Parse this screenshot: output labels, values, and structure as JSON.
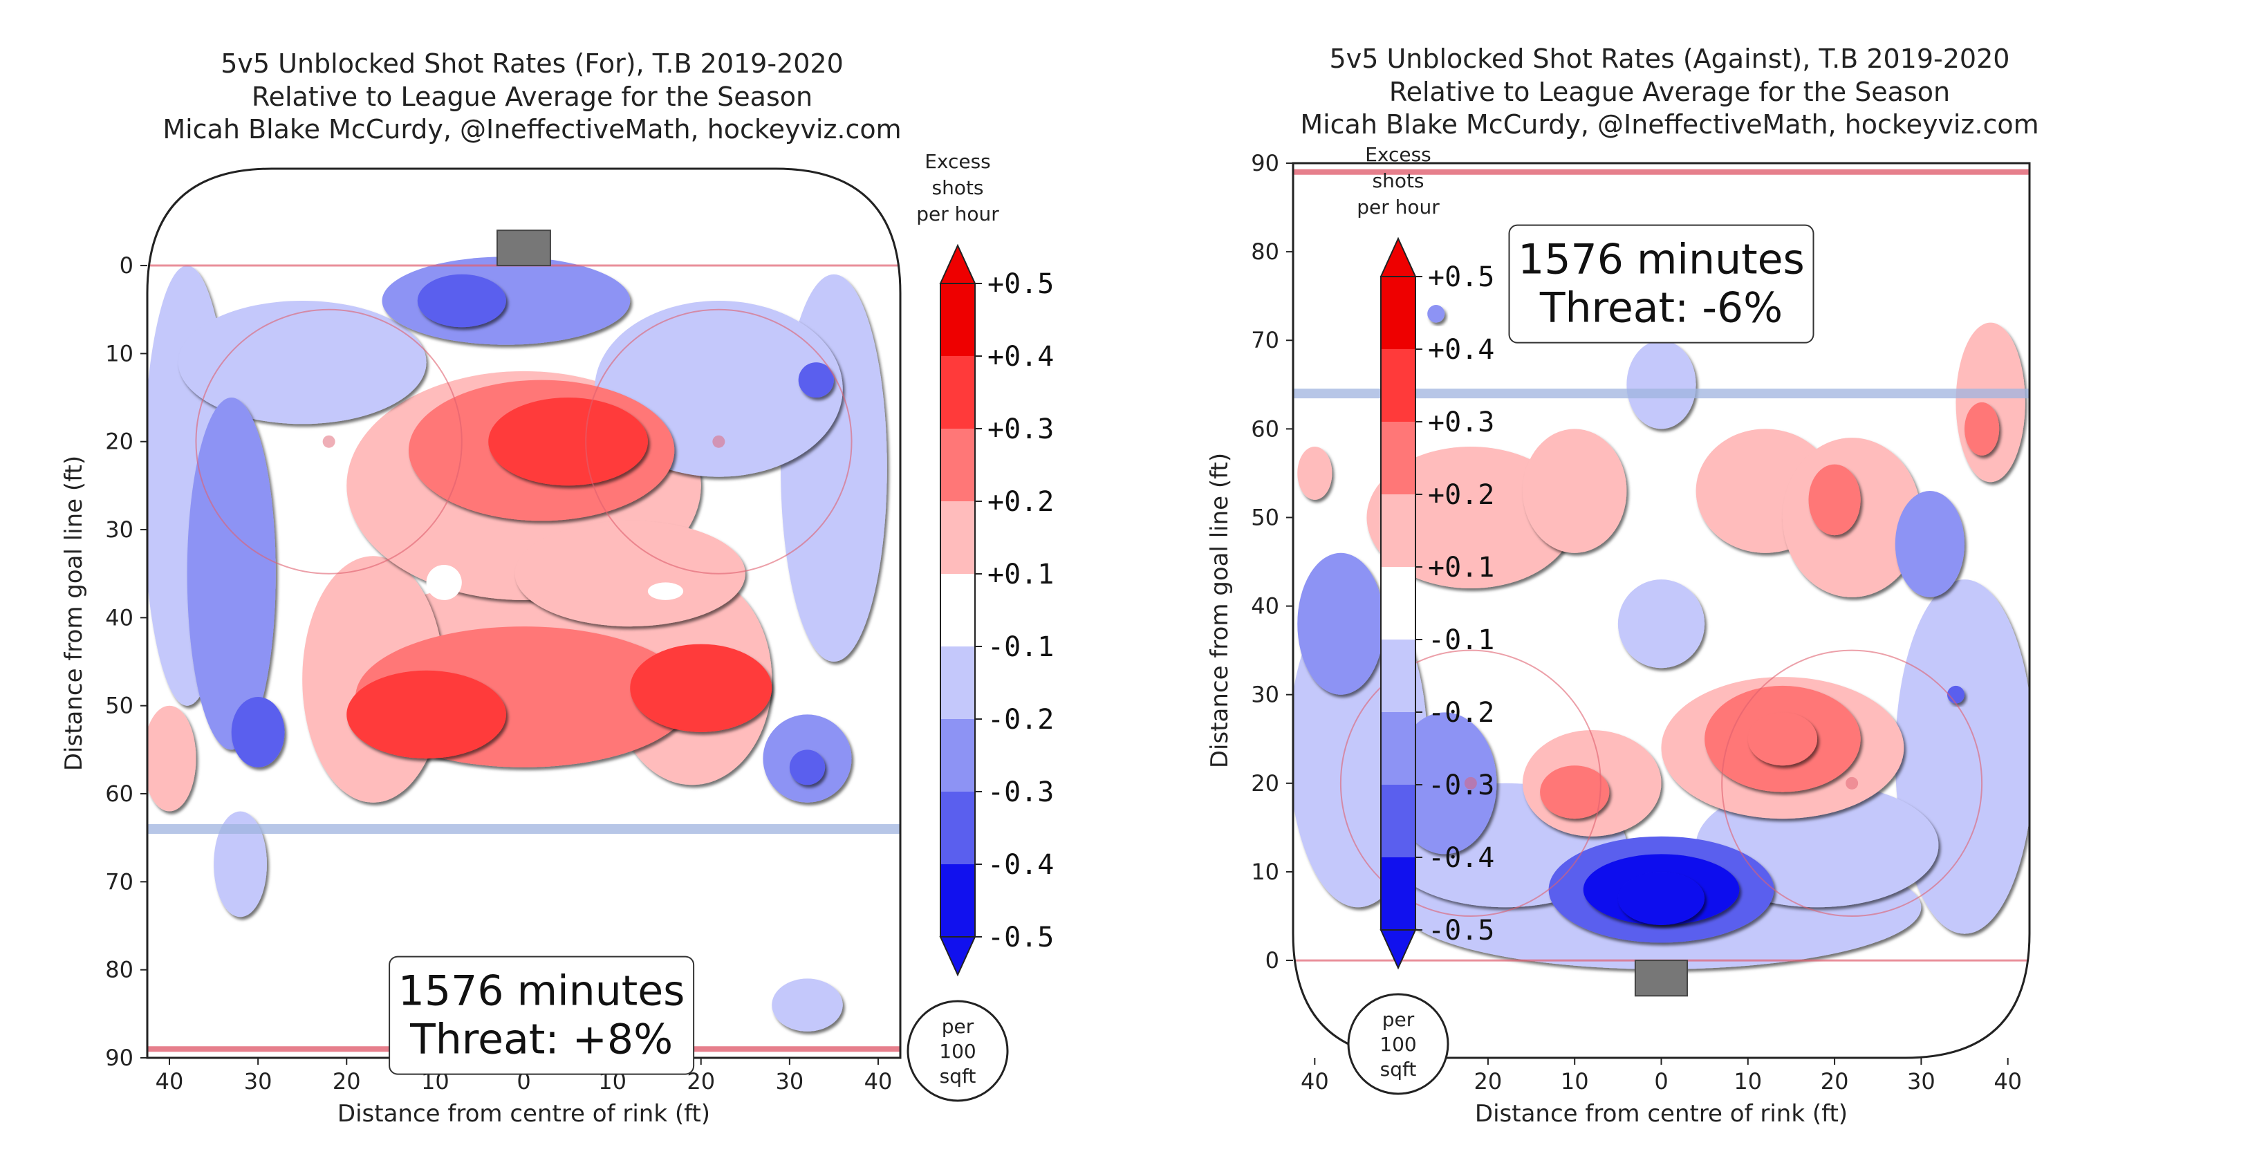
{
  "colors": {
    "red_max": "#ee0000",
    "red_1": "#ff3a3a",
    "red_2": "#ff7777",
    "red_3": "#ffbcbc",
    "neutral": "#ffffff",
    "blue_1": "#c4c8fb",
    "blue_2": "#8d93f4",
    "blue_3": "#5a5fee",
    "blue_max": "#1111ee",
    "rink_line_red": "#e06070",
    "rink_line_blue": "#9fb4e0",
    "net": "#777777"
  },
  "colorbar": {
    "header": [
      "Excess",
      "shots",
      "per hour"
    ],
    "tick_labels": [
      "+0.5",
      "+0.4",
      "+0.3",
      "+0.2",
      "+0.1",
      "-0.1",
      "-0.2",
      "-0.3",
      "-0.4",
      "-0.5"
    ],
    "unit": [
      "per",
      "100",
      "sqft"
    ]
  },
  "chart_data": [
    {
      "type": "heatmap",
      "title": [
        "5v5 Unblocked Shot Rates (For), T.B 2019-2020",
        "Relative to League Average for the Season",
        "Micah Blake McCurdy, @IneffectiveMath, hockeyviz.com"
      ],
      "xlabel": "Distance from centre of rink (ft)",
      "ylabel": "Distance from goal line (ft)",
      "x_ticks": [
        "40",
        "30",
        "20",
        "10",
        "0",
        "10",
        "20",
        "30",
        "40"
      ],
      "y_ticks": [
        "0",
        "10",
        "20",
        "30",
        "40",
        "50",
        "60",
        "70",
        "80",
        "90"
      ],
      "xlim": [
        -42.5,
        42.5
      ],
      "ylim": [
        -11,
        90
      ],
      "y_inverted": true,
      "goal_end": "top",
      "annotation": [
        "1576 minutes",
        "Threat: +8%"
      ],
      "blobs": [
        {
          "x": 0,
          "y": 44,
          "rx": 20,
          "ry": 8,
          "level": 1
        },
        {
          "x": -17,
          "y": 47,
          "rx": 8,
          "ry": 14,
          "level": 1
        },
        {
          "x": 19,
          "y": 47,
          "rx": 9,
          "ry": 12,
          "level": 1
        },
        {
          "x": 0,
          "y": 25,
          "rx": 20,
          "ry": 13,
          "level": 1
        },
        {
          "x": 12,
          "y": 35,
          "rx": 13,
          "ry": 6,
          "level": 1
        },
        {
          "x": 2,
          "y": 21,
          "rx": 15,
          "ry": 8,
          "level": 3
        },
        {
          "x": 5,
          "y": 20,
          "rx": 9,
          "ry": 5,
          "level": 4
        },
        {
          "x": 0,
          "y": 49,
          "rx": 19,
          "ry": 8,
          "level": 3
        },
        {
          "x": -11,
          "y": 51,
          "rx": 9,
          "ry": 5,
          "level": 4
        },
        {
          "x": 20,
          "y": 48,
          "rx": 8,
          "ry": 5,
          "level": 4
        },
        {
          "x": -40,
          "y": 56,
          "rx": 3,
          "ry": 6,
          "level": 1
        },
        {
          "x": -2,
          "y": 4,
          "rx": 14,
          "ry": 5,
          "level": -2
        },
        {
          "x": -7,
          "y": 4,
          "rx": 5,
          "ry": 3,
          "level": -3
        },
        {
          "x": -38,
          "y": 25,
          "rx": 5,
          "ry": 25,
          "level": -1
        },
        {
          "x": 35,
          "y": 23,
          "rx": 6,
          "ry": 22,
          "level": -1
        },
        {
          "x": -25,
          "y": 11,
          "rx": 14,
          "ry": 7,
          "level": -1
        },
        {
          "x": 22,
          "y": 14,
          "rx": 14,
          "ry": 10,
          "level": -1
        },
        {
          "x": -33,
          "y": 35,
          "rx": 5,
          "ry": 20,
          "level": -2
        },
        {
          "x": -30,
          "y": 53,
          "rx": 3,
          "ry": 4,
          "level": -3
        },
        {
          "x": 32,
          "y": 56,
          "rx": 5,
          "ry": 5,
          "level": -2
        },
        {
          "x": 32,
          "y": 57,
          "rx": 2,
          "ry": 2,
          "level": -3
        },
        {
          "x": 33,
          "y": 13,
          "rx": 2,
          "ry": 2,
          "level": -3
        },
        {
          "x": -32,
          "y": 68,
          "rx": 3,
          "ry": 6,
          "level": -1
        },
        {
          "x": 32,
          "y": 84,
          "rx": 4,
          "ry": 3,
          "level": -1
        }
      ],
      "white_holes": [
        {
          "x": -9,
          "y": 36,
          "rx": 2,
          "ry": 2
        },
        {
          "x": 16,
          "y": 37,
          "rx": 2,
          "ry": 1
        }
      ]
    },
    {
      "type": "heatmap",
      "title": [
        "5v5 Unblocked Shot Rates (Against), T.B 2019-2020",
        "Relative to League Average for the Season",
        "Micah Blake McCurdy, @IneffectiveMath, hockeyviz.com"
      ],
      "xlabel": "Distance from centre of rink (ft)",
      "ylabel": "Distance from goal line (ft)",
      "x_ticks": [
        "40",
        "30",
        "20",
        "10",
        "0",
        "10",
        "20",
        "30",
        "40"
      ],
      "y_ticks": [
        "0",
        "10",
        "20",
        "30",
        "40",
        "50",
        "60",
        "70",
        "80",
        "90"
      ],
      "xlim": [
        -42.5,
        42.5
      ],
      "ylim": [
        -11,
        90
      ],
      "y_inverted": false,
      "goal_end": "bottom",
      "annotation": [
        "1576 minutes",
        "Threat: -6%"
      ],
      "blobs": [
        {
          "x": -35,
          "y": 24,
          "rx": 8,
          "ry": 18,
          "level": -1
        },
        {
          "x": 35,
          "y": 23,
          "rx": 8,
          "ry": 20,
          "level": -1
        },
        {
          "x": 0,
          "y": 6,
          "rx": 30,
          "ry": 7,
          "level": -1
        },
        {
          "x": -18,
          "y": 13,
          "rx": 14,
          "ry": 7,
          "level": -1
        },
        {
          "x": 18,
          "y": 13,
          "rx": 14,
          "ry": 7,
          "level": -1
        },
        {
          "x": 0,
          "y": 38,
          "rx": 5,
          "ry": 5,
          "level": -1
        },
        {
          "x": 0,
          "y": 65,
          "rx": 4,
          "ry": 5,
          "level": -1
        },
        {
          "x": -25,
          "y": 20,
          "rx": 6,
          "ry": 8,
          "level": -2
        },
        {
          "x": -37,
          "y": 38,
          "rx": 5,
          "ry": 8,
          "level": -2
        },
        {
          "x": 31,
          "y": 47,
          "rx": 4,
          "ry": 6,
          "level": -2
        },
        {
          "x": 0,
          "y": 8,
          "rx": 13,
          "ry": 6,
          "level": -3
        },
        {
          "x": 0,
          "y": 8,
          "rx": 9,
          "ry": 4,
          "level": -4
        },
        {
          "x": 0,
          "y": 7,
          "rx": 5,
          "ry": 3,
          "level": -5
        },
        {
          "x": 34,
          "y": 30,
          "rx": 1,
          "ry": 1,
          "level": -3
        },
        {
          "x": -26,
          "y": 73,
          "rx": 1,
          "ry": 1,
          "level": -2
        },
        {
          "x": -22,
          "y": 50,
          "rx": 12,
          "ry": 8,
          "level": 1
        },
        {
          "x": -10,
          "y": 53,
          "rx": 6,
          "ry": 7,
          "level": 1
        },
        {
          "x": 12,
          "y": 53,
          "rx": 8,
          "ry": 7,
          "level": 1
        },
        {
          "x": 22,
          "y": 50,
          "rx": 8,
          "ry": 9,
          "level": 1
        },
        {
          "x": 14,
          "y": 24,
          "rx": 14,
          "ry": 8,
          "level": 1
        },
        {
          "x": -8,
          "y": 20,
          "rx": 8,
          "ry": 6,
          "level": 1
        },
        {
          "x": 38,
          "y": 63,
          "rx": 4,
          "ry": 9,
          "level": 1
        },
        {
          "x": -40,
          "y": 55,
          "rx": 2,
          "ry": 3,
          "level": 1
        },
        {
          "x": 14,
          "y": 25,
          "rx": 9,
          "ry": 6,
          "level": 2
        },
        {
          "x": -10,
          "y": 19,
          "rx": 4,
          "ry": 3,
          "level": 2
        },
        {
          "x": 37,
          "y": 60,
          "rx": 2,
          "ry": 3,
          "level": 2
        },
        {
          "x": 20,
          "y": 52,
          "rx": 3,
          "ry": 4,
          "level": 2
        },
        {
          "x": 14,
          "y": 25,
          "rx": 4,
          "ry": 3,
          "level": 3
        }
      ],
      "white_holes": []
    }
  ]
}
